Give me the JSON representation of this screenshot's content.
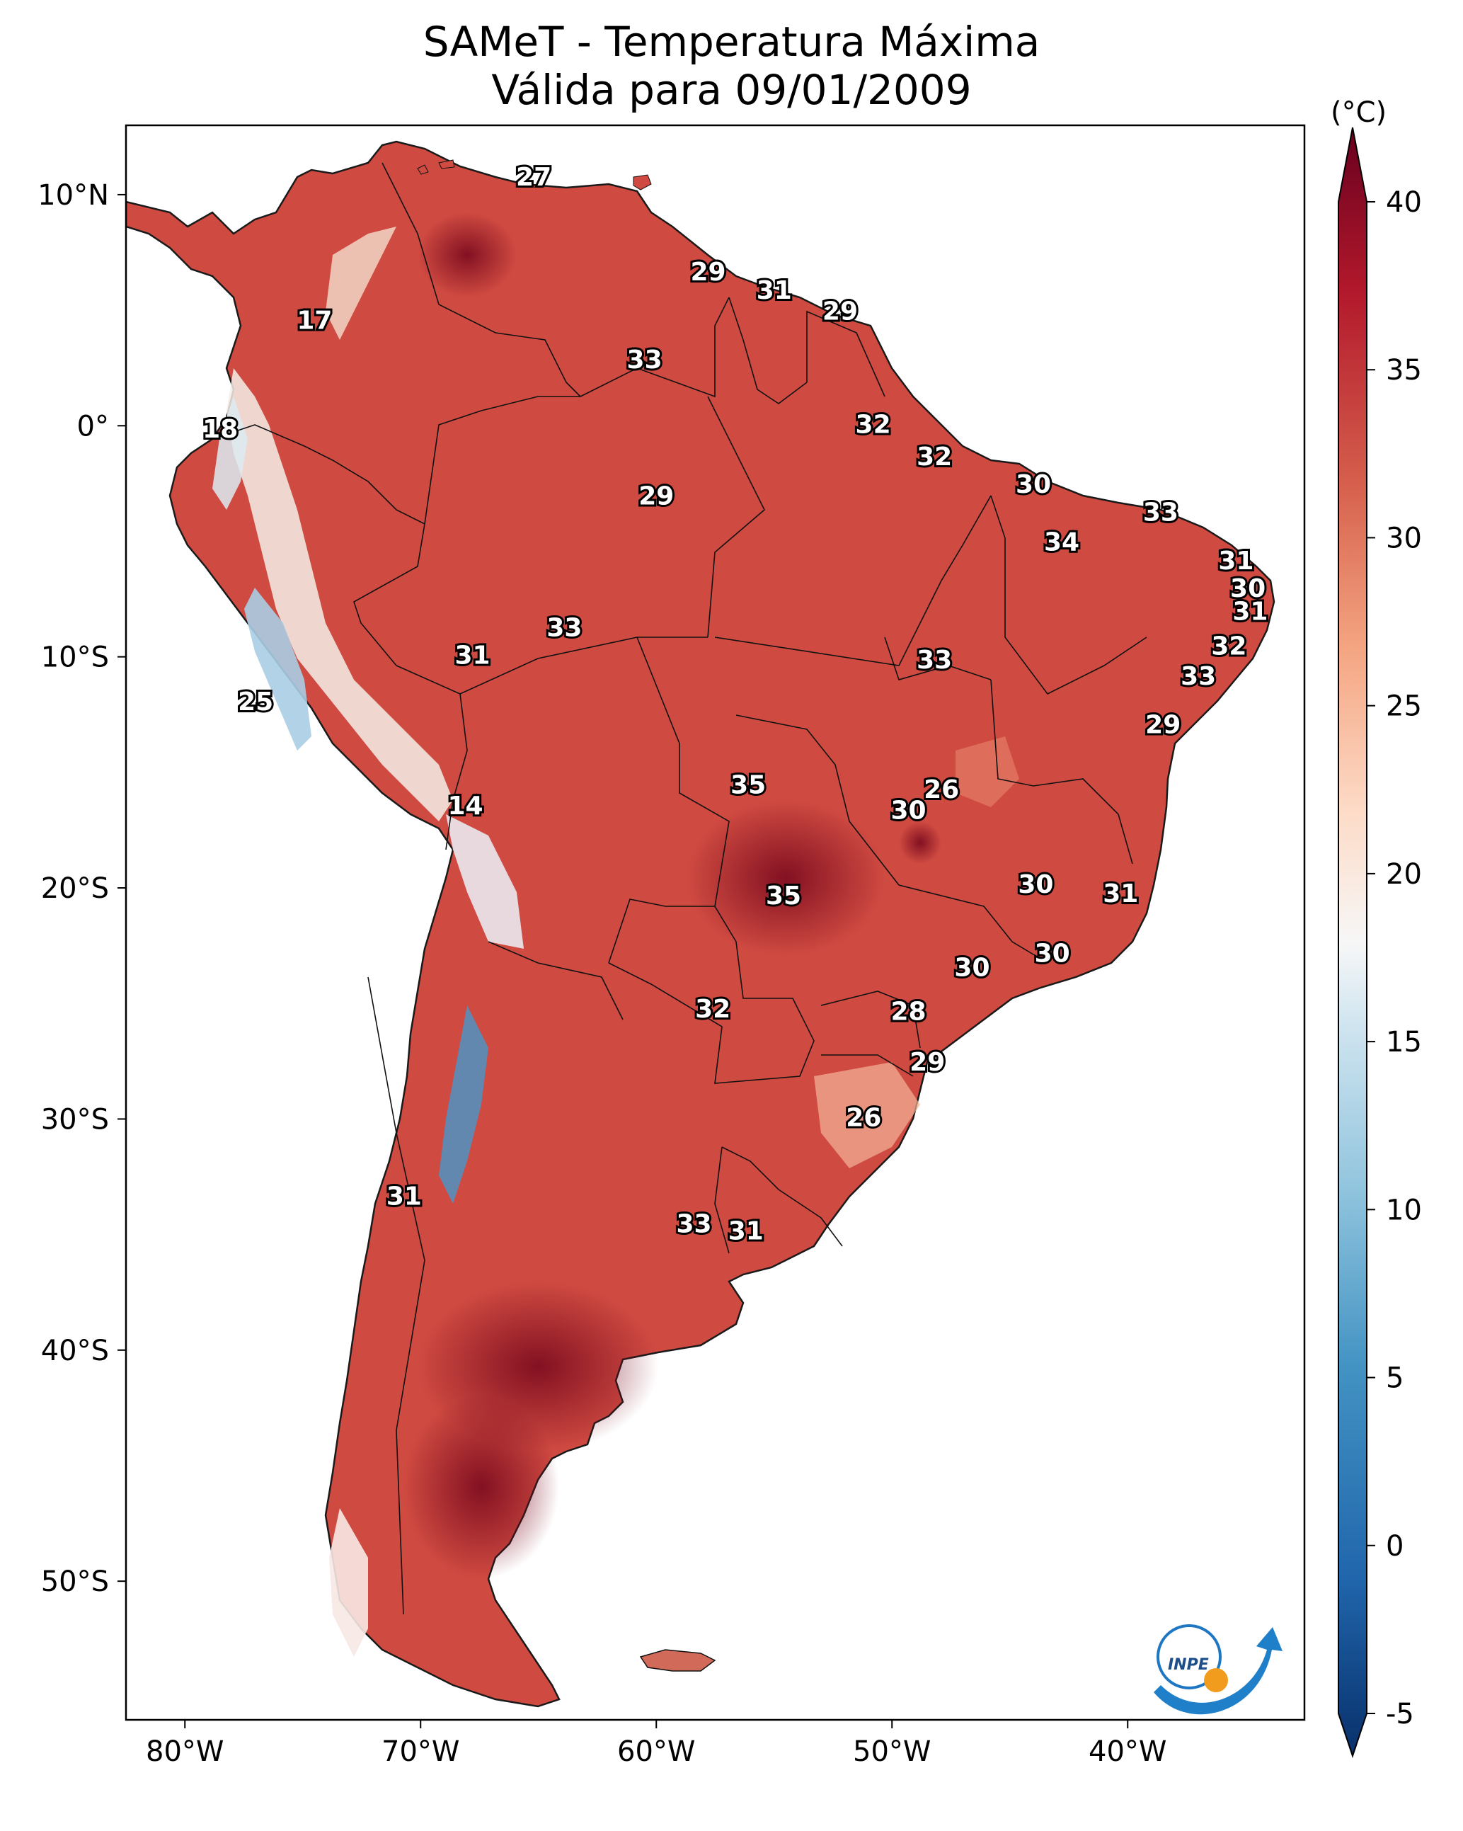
{
  "title": {
    "line1": "SAMeT - Temperatura Máxima",
    "line2": "Válida para 09/01/2009"
  },
  "axes": {
    "lat_labels": [
      "10°N",
      "0°",
      "10°S",
      "20°S",
      "30°S",
      "40°S",
      "50°S"
    ],
    "lat_values": [
      10,
      0,
      -10,
      -20,
      -30,
      -40,
      -50
    ],
    "lon_labels": [
      "80°W",
      "70°W",
      "60°W",
      "50°W",
      "40°W"
    ],
    "lon_values": [
      -80,
      -70,
      -60,
      -50,
      -40
    ],
    "lon_range": [
      -82.5,
      -32.5
    ],
    "lat_range": [
      -56,
      13
    ]
  },
  "colorbar": {
    "unit": "(°C)",
    "ticks": [
      "-5",
      "0",
      "5",
      "10",
      "15",
      "20",
      "25",
      "30",
      "35",
      "40"
    ],
    "tick_values": [
      -5,
      0,
      5,
      10,
      15,
      20,
      25,
      30,
      35,
      40
    ],
    "range": [
      -5,
      40
    ]
  },
  "stations": [
    {
      "value": "27",
      "lon": -65.2,
      "lat": 10.7
    },
    {
      "value": "29",
      "lon": -57.8,
      "lat": 6.6
    },
    {
      "value": "31",
      "lon": -55.0,
      "lat": 5.8
    },
    {
      "value": "29",
      "lon": -52.2,
      "lat": 4.9
    },
    {
      "value": "17",
      "lon": -74.5,
      "lat": 4.5
    },
    {
      "value": "33",
      "lon": -60.5,
      "lat": 2.8
    },
    {
      "value": "18",
      "lon": -78.5,
      "lat": -0.2
    },
    {
      "value": "32",
      "lon": -50.8,
      "lat": 0.0
    },
    {
      "value": "32",
      "lon": -48.2,
      "lat": -1.4
    },
    {
      "value": "30",
      "lon": -44.0,
      "lat": -2.6
    },
    {
      "value": "29",
      "lon": -60.0,
      "lat": -3.1
    },
    {
      "value": "33",
      "lon": -38.6,
      "lat": -3.8
    },
    {
      "value": "34",
      "lon": -42.8,
      "lat": -5.1
    },
    {
      "value": "31",
      "lon": -35.4,
      "lat": -5.9
    },
    {
      "value": "30",
      "lon": -34.9,
      "lat": -7.1
    },
    {
      "value": "31",
      "lon": -34.8,
      "lat": -8.1
    },
    {
      "value": "33",
      "lon": -63.9,
      "lat": -8.8
    },
    {
      "value": "32",
      "lon": -35.7,
      "lat": -9.6
    },
    {
      "value": "31",
      "lon": -67.8,
      "lat": -10.0
    },
    {
      "value": "33",
      "lon": -48.2,
      "lat": -10.2
    },
    {
      "value": "33",
      "lon": -37.0,
      "lat": -10.9
    },
    {
      "value": "25",
      "lon": -77.0,
      "lat": -12.0
    },
    {
      "value": "29",
      "lon": -38.5,
      "lat": -13.0
    },
    {
      "value": "35",
      "lon": -56.1,
      "lat": -15.6
    },
    {
      "value": "26",
      "lon": -47.9,
      "lat": -15.8
    },
    {
      "value": "14",
      "lon": -68.1,
      "lat": -16.5
    },
    {
      "value": "30",
      "lon": -49.3,
      "lat": -16.7
    },
    {
      "value": "30",
      "lon": -43.9,
      "lat": -19.9
    },
    {
      "value": "35",
      "lon": -54.6,
      "lat": -20.4
    },
    {
      "value": "31",
      "lon": -40.3,
      "lat": -20.3
    },
    {
      "value": "30",
      "lon": -43.2,
      "lat": -22.9
    },
    {
      "value": "30",
      "lon": -46.6,
      "lat": -23.5
    },
    {
      "value": "32",
      "lon": -57.6,
      "lat": -25.3
    },
    {
      "value": "28",
      "lon": -49.3,
      "lat": -25.4
    },
    {
      "value": "29",
      "lon": -48.5,
      "lat": -27.6
    },
    {
      "value": "26",
      "lon": -51.2,
      "lat": -30.0
    },
    {
      "value": "31",
      "lon": -70.7,
      "lat": -33.4
    },
    {
      "value": "33",
      "lon": -58.4,
      "lat": -34.6
    },
    {
      "value": "31",
      "lon": -56.2,
      "lat": -34.9
    }
  ],
  "logo": {
    "text": "INPE"
  }
}
